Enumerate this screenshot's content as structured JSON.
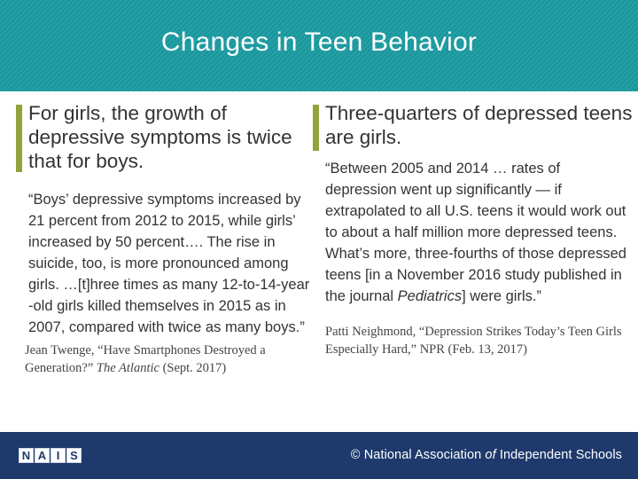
{
  "slide": {
    "title": "Changes in Teen Behavior"
  },
  "left": {
    "heading": "For girls, the growth of depressive symptoms is twice that for boys.",
    "quote": "“Boys’ depressive symptoms increased by 21 percent from 2012 to 2015, while girls’ increased by 50 percent…. The rise in suicide, too, is more pronounced among girls. …[t]hree times as many 12-to-14-year -old girls killed themselves in 2015 as in 2007, compared with twice as many boys.”",
    "citation_prefix": "Jean Twenge, “Have Smartphones Destroyed a Generation?” ",
    "citation_source": "The Atlantic",
    "citation_suffix": " (Sept. 2017)"
  },
  "right": {
    "heading": "Three-quarters of depressed teens are girls.",
    "quote_prefix": "“Between 2005 and 2014 … rates of depression went up significantly — if extrapolated to all U.S. teens it would work out to about a half million more depressed teens. What’s more, three-fourths of those depressed teens [in a November 2016 study published in the journal ",
    "quote_source": "Pediatrics",
    "quote_suffix": "] were girls.”",
    "citation": "Patti Neighmond, “Depression Strikes Today’s Teen Girls Especially Hard,” NPR (Feb. 13, 2017)"
  },
  "footer": {
    "logo_letters": [
      "N",
      "A",
      "I",
      "S"
    ],
    "org_prefix": "© National Association ",
    "org_of": "of",
    "org_suffix": " Independent Schools"
  },
  "colors": {
    "title_bar": "#1a9ba1",
    "accent": "#92a23d",
    "footer": "#1e3a6c"
  }
}
